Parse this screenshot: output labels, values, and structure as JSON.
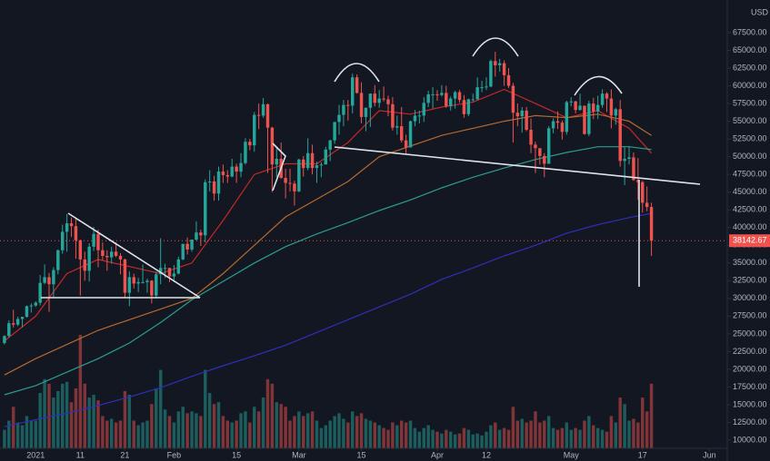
{
  "chart_data": {
    "type": "candlestick",
    "y_label": "USD",
    "x": [
      "Dec 25",
      "Dec 26",
      "Dec 27",
      "Dec 28",
      "Dec 29",
      "Dec 30",
      "Dec 31",
      "Jan 1",
      "Jan 2",
      "Jan 3",
      "Jan 4",
      "Jan 5",
      "Jan 6",
      "Jan 7",
      "Jan 8",
      "Jan 9",
      "Jan 10",
      "Jan 11",
      "Jan 12",
      "Jan 13",
      "Jan 14",
      "Jan 15",
      "Jan 16",
      "Jan 17",
      "Jan 18",
      "Jan 19",
      "Jan 20",
      "Jan 21",
      "Jan 22",
      "Jan 23",
      "Jan 24",
      "Jan 25",
      "Jan 26",
      "Jan 27",
      "Jan 28",
      "Jan 29",
      "Jan 30",
      "Jan 31",
      "Feb 1",
      "Feb 2",
      "Feb 3",
      "Feb 4",
      "Feb 5",
      "Feb 6",
      "Feb 7",
      "Feb 8",
      "Feb 9",
      "Feb 10",
      "Feb 11",
      "Feb 12",
      "Feb 13",
      "Feb 14",
      "Feb 15",
      "Feb 16",
      "Feb 17",
      "Feb 18",
      "Feb 19",
      "Feb 20",
      "Feb 21",
      "Feb 22",
      "Feb 23",
      "Feb 24",
      "Feb 25",
      "Feb 26",
      "Feb 27",
      "Feb 28",
      "Mar 1",
      "Mar 2",
      "Mar 3",
      "Mar 4",
      "Mar 5",
      "Mar 6",
      "Mar 7",
      "Mar 8",
      "Mar 9",
      "Mar 10",
      "Mar 11",
      "Mar 12",
      "Mar 13",
      "Mar 14",
      "Mar 15",
      "Mar 16",
      "Mar 17",
      "Mar 18",
      "Mar 19",
      "Mar 20",
      "Mar 21",
      "Mar 22",
      "Mar 23",
      "Mar 24",
      "Mar 25",
      "Mar 26",
      "Mar 27",
      "Mar 28",
      "Mar 29",
      "Mar 30",
      "Mar 31",
      "Apr 1",
      "Apr 2",
      "Apr 3",
      "Apr 4",
      "Apr 5",
      "Apr 6",
      "Apr 7",
      "Apr 8",
      "Apr 9",
      "Apr 10",
      "Apr 11",
      "Apr 12",
      "Apr 13",
      "Apr 14",
      "Apr 15",
      "Apr 16",
      "Apr 17",
      "Apr 18",
      "Apr 19",
      "Apr 20",
      "Apr 21",
      "Apr 22",
      "Apr 23",
      "Apr 24",
      "Apr 25",
      "Apr 26",
      "Apr 27",
      "Apr 28",
      "Apr 29",
      "Apr 30",
      "May 1",
      "May 2",
      "May 3",
      "May 4",
      "May 5",
      "May 6",
      "May 7",
      "May 8",
      "May 9",
      "May 10",
      "May 11",
      "May 12",
      "May 13",
      "May 14",
      "May 15",
      "May 16",
      "May 17",
      "May 18",
      "May 19"
    ],
    "open": [
      23700,
      24700,
      26500,
      26300,
      27100,
      27400,
      28900,
      29000,
      29400,
      32200,
      33000,
      32000,
      34000,
      36800,
      39400,
      40600,
      40200,
      38200,
      35500,
      33900,
      37300,
      39100,
      36800,
      36000,
      35800,
      36600,
      36000,
      35500,
      30800,
      33000,
      32100,
      32300,
      32300,
      32500,
      30400,
      33400,
      34300,
      34300,
      33100,
      33500,
      35500,
      37700,
      36900,
      38300,
      39300,
      38900,
      46400,
      46500,
      44800,
      47900,
      47400,
      47200,
      48600,
      47900,
      49100,
      52100,
      51600,
      55900,
      55800,
      57400,
      54100,
      48900,
      49700,
      47000,
      46300,
      46200,
      45100,
      49600,
      48400,
      50500,
      48400,
      48800,
      48900,
      51000,
      52300,
      54900,
      55900,
      57300,
      57200,
      61200,
      59000,
      55600,
      56900,
      58900,
      57600,
      58200,
      58100,
      57400,
      54100,
      54300,
      52300,
      51300,
      55000,
      55800,
      55800,
      57600,
      58800,
      58800,
      58700,
      59000,
      57100,
      58200,
      59100,
      58000,
      56000,
      58100,
      58100,
      59800,
      59800,
      59900,
      63500,
      62900,
      63200,
      61500,
      60000,
      56200,
      55700,
      56500,
      53800,
      51700,
      51200,
      50100,
      49000,
      54000,
      55000,
      54800,
      53500,
      57700,
      57800,
      56600,
      57200,
      53200,
      57500,
      56400,
      57300,
      58900,
      58200,
      55800,
      56700,
      49400,
      49700,
      49900,
      46700,
      46400,
      43500,
      42900
    ],
    "high": [
      24800,
      26900,
      28400,
      27400,
      27400,
      29000,
      29300,
      29600,
      33300,
      34800,
      33600,
      34400,
      36900,
      40400,
      41900,
      41400,
      41400,
      38300,
      36600,
      37800,
      40100,
      39700,
      37900,
      36800,
      37300,
      37900,
      36400,
      35600,
      33800,
      33500,
      32900,
      34800,
      32800,
      32600,
      33800,
      38500,
      34900,
      34300,
      34700,
      35900,
      37700,
      38600,
      38300,
      40900,
      39700,
      46800,
      48100,
      47300,
      48600,
      48900,
      48100,
      49700,
      49000,
      50500,
      52600,
      52500,
      56300,
      57500,
      58300,
      57500,
      54200,
      51300,
      52000,
      48300,
      48300,
      46600,
      49700,
      50100,
      52600,
      51700,
      49300,
      49200,
      51400,
      52400,
      54900,
      57300,
      58000,
      58000,
      61700,
      61600,
      60500,
      56900,
      58900,
      60100,
      59400,
      59900,
      58600,
      58400,
      55800,
      57000,
      53100,
      55100,
      56600,
      56500,
      58400,
      59300,
      59800,
      59400,
      60100,
      60000,
      58500,
      59300,
      59400,
      58700,
      58200,
      58900,
      61200,
      60700,
      61200,
      63700,
      64800,
      63800,
      63600,
      62500,
      60400,
      57500,
      57000,
      57000,
      55400,
      52100,
      51200,
      50500,
      54300,
      55400,
      56400,
      55100,
      57900,
      58400,
      57900,
      58900,
      57200,
      57900,
      58300,
      58600,
      59500,
      59100,
      59500,
      56900,
      58000,
      51400,
      51500,
      50600,
      49800,
      46600,
      45800,
      43500
    ],
    "low": [
      23500,
      24500,
      25900,
      26100,
      25900,
      27300,
      28000,
      28800,
      29000,
      32000,
      28100,
      30000,
      33400,
      36300,
      36600,
      38700,
      35600,
      30400,
      32500,
      32400,
      36700,
      34400,
      35400,
      33900,
      34900,
      35800,
      33400,
      30100,
      28900,
      31400,
      30900,
      32100,
      30800,
      29300,
      30000,
      32000,
      32900,
      32300,
      32300,
      33400,
      35400,
      36200,
      36600,
      38200,
      37400,
      37900,
      45100,
      43800,
      43800,
      46300,
      46300,
      47100,
      46300,
      47100,
      48900,
      50900,
      50700,
      53900,
      55500,
      47700,
      45000,
      47100,
      46900,
      44100,
      45100,
      43100,
      45000,
      47200,
      48100,
      47500,
      46300,
      47100,
      48900,
      49400,
      51800,
      53100,
      54300,
      55100,
      56100,
      58900,
      54700,
      53600,
      54200,
      57100,
      56900,
      57800,
      55700,
      53700,
      53100,
      52000,
      50400,
      51300,
      54300,
      54700,
      54900,
      57000,
      56800,
      57900,
      58500,
      56900,
      56500,
      56800,
      57600,
      55500,
      55700,
      57800,
      58000,
      59100,
      59400,
      59800,
      61300,
      62000,
      60000,
      59700,
      52000,
      54300,
      53400,
      53600,
      50500,
      47700,
      48900,
      47100,
      49000,
      53300,
      53900,
      52400,
      53100,
      57100,
      56100,
      56500,
      53100,
      52900,
      55300,
      55300,
      56900,
      56300,
      54000,
      54500,
      48600,
      46000,
      48900,
      46600,
      43900,
      42100,
      42300,
      36000
    ],
    "close": [
      24700,
      26500,
      26300,
      27100,
      27400,
      28900,
      29000,
      29400,
      32200,
      33000,
      32000,
      34000,
      36800,
      39400,
      40600,
      40200,
      38200,
      35500,
      33900,
      37300,
      39100,
      36800,
      36000,
      35800,
      36600,
      36000,
      35500,
      30800,
      33000,
      32100,
      32300,
      32300,
      32500,
      30400,
      33400,
      34300,
      34300,
      33100,
      33500,
      35500,
      37700,
      36900,
      38300,
      39300,
      38900,
      46400,
      46500,
      44800,
      47900,
      47400,
      47200,
      48600,
      47900,
      49100,
      52100,
      51600,
      55900,
      55800,
      57400,
      54100,
      48900,
      49700,
      47000,
      46300,
      46200,
      45100,
      49600,
      48400,
      50500,
      48400,
      48800,
      48900,
      51000,
      52300,
      54900,
      55900,
      57300,
      57200,
      61200,
      59000,
      55600,
      56900,
      58900,
      57600,
      58200,
      58100,
      57400,
      54100,
      54300,
      52300,
      51300,
      55000,
      55800,
      55800,
      57600,
      58800,
      58800,
      58700,
      59000,
      57100,
      58200,
      59100,
      58000,
      56000,
      58100,
      58100,
      59800,
      59800,
      59900,
      63500,
      62900,
      63200,
      61500,
      60000,
      56200,
      55700,
      56500,
      53800,
      51700,
      51200,
      50100,
      49000,
      54000,
      55000,
      54800,
      53500,
      57700,
      57800,
      56600,
      57200,
      53200,
      57500,
      56400,
      57300,
      58900,
      58200,
      55800,
      56700,
      49400,
      49700,
      49900,
      46700,
      46400,
      43500,
      42900,
      38142.67
    ],
    "volume": [
      20,
      30,
      45,
      28,
      25,
      35,
      30,
      30,
      60,
      75,
      70,
      55,
      62,
      70,
      72,
      50,
      65,
      123,
      70,
      55,
      58,
      52,
      35,
      30,
      32,
      28,
      30,
      62,
      58,
      30,
      25,
      28,
      30,
      48,
      65,
      85,
      42,
      35,
      28,
      40,
      45,
      38,
      40,
      38,
      35,
      85,
      60,
      48,
      50,
      35,
      30,
      28,
      30,
      38,
      40,
      28,
      45,
      40,
      55,
      75,
      70,
      50,
      48,
      45,
      30,
      35,
      40,
      35,
      38,
      40,
      30,
      22,
      25,
      30,
      35,
      38,
      32,
      28,
      40,
      35,
      38,
      32,
      30,
      28,
      25,
      22,
      20,
      28,
      25,
      30,
      28,
      30,
      22,
      18,
      22,
      25,
      20,
      18,
      16,
      20,
      18,
      15,
      16,
      22,
      20,
      15,
      16,
      14,
      18,
      25,
      28,
      20,
      22,
      20,
      45,
      30,
      32,
      28,
      30,
      40,
      28,
      30,
      35,
      22,
      20,
      22,
      28,
      20,
      22,
      20,
      30,
      35,
      25,
      22,
      20,
      18,
      35,
      28,
      55,
      48,
      30,
      32,
      28,
      55,
      40,
      70
    ],
    "up_color": "#26a69a",
    "down_color": "#ef5350",
    "moving_averages": [
      {
        "color": "#c62828",
        "x": [
          "Dec 25",
          "Jan 1",
          "Jan 8",
          "Jan 15",
          "Jan 22",
          "Jan 29",
          "Feb 5",
          "Feb 12",
          "Feb 19",
          "Feb 26",
          "Mar 5",
          "Mar 12",
          "Mar 19",
          "Mar 26",
          "Apr 2",
          "Apr 9",
          "Apr 16",
          "Apr 23",
          "Apr 30",
          "May 7",
          "May 14",
          "May 19"
        ],
        "values": [
          24000,
          27500,
          33500,
          35500,
          34500,
          33500,
          35000,
          41000,
          47500,
          49000,
          49000,
          52000,
          56500,
          56000,
          57000,
          57700,
          59500,
          57500,
          55500,
          56500,
          54000,
          50500
        ]
      },
      {
        "color": "#b8692e",
        "x": [
          "Dec 25",
          "Jan 1",
          "Jan 8",
          "Jan 15",
          "Jan 22",
          "Jan 29",
          "Feb 5",
          "Feb 12",
          "Feb 19",
          "Feb 26",
          "Mar 5",
          "Mar 12",
          "Mar 19",
          "Mar 26",
          "Apr 2",
          "Apr 9",
          "Apr 16",
          "Apr 23",
          "Apr 30",
          "May 7",
          "May 14",
          "May 19"
        ],
        "values": [
          19200,
          21500,
          23500,
          25500,
          27000,
          28500,
          30000,
          33500,
          37500,
          41500,
          44000,
          46500,
          50000,
          51500,
          53000,
          54000,
          55000,
          55800,
          55500,
          56000,
          55000,
          53000
        ]
      },
      {
        "color": "#2a9d8f",
        "x": [
          "Dec 25",
          "Jan 1",
          "Jan 8",
          "Jan 15",
          "Jan 22",
          "Jan 29",
          "Feb 5",
          "Feb 12",
          "Feb 19",
          "Feb 26",
          "Mar 5",
          "Mar 12",
          "Mar 19",
          "Mar 26",
          "Apr 2",
          "Apr 9",
          "Apr 16",
          "Apr 23",
          "Apr 30",
          "May 7",
          "May 14",
          "May 19"
        ],
        "values": [
          16400,
          17700,
          19600,
          21500,
          23700,
          26600,
          29800,
          32400,
          35000,
          37300,
          39100,
          40700,
          42400,
          43900,
          45600,
          47100,
          48400,
          49600,
          50600,
          51400,
          51400,
          51000
        ]
      },
      {
        "color": "#2f2fb8",
        "x": [
          "Dec 25",
          "Jan 1",
          "Jan 8",
          "Jan 15",
          "Jan 22",
          "Jan 29",
          "Feb 5",
          "Feb 12",
          "Feb 19",
          "Feb 26",
          "Mar 5",
          "Mar 12",
          "Mar 19",
          "Mar 26",
          "Apr 2",
          "Apr 9",
          "Apr 16",
          "Apr 23",
          "Apr 30",
          "May 7",
          "May 14",
          "May 19"
        ],
        "values": [
          11900,
          12900,
          13800,
          14900,
          16100,
          17400,
          19000,
          20500,
          21900,
          23400,
          25200,
          27000,
          28800,
          30600,
          32700,
          34300,
          36000,
          37500,
          39200,
          40400,
          41400,
          42000
        ]
      }
    ],
    "xlim": [
      "Dec 24",
      "Jun 5"
    ],
    "xticks": [
      {
        "value": "Jan 1",
        "label": "2021"
      },
      {
        "value": "Jan 11",
        "label": "11"
      },
      {
        "value": "Jan 21",
        "label": "21"
      },
      {
        "value": "Feb 1",
        "label": "Feb"
      },
      {
        "value": "Feb 15",
        "label": "15"
      },
      {
        "value": "Mar 1",
        "label": "Mar"
      },
      {
        "value": "Mar 15",
        "label": "15"
      },
      {
        "value": "Apr 1",
        "label": "Apr"
      },
      {
        "value": "Apr 12",
        "label": "12"
      },
      {
        "value": "May 1",
        "label": "May"
      },
      {
        "value": "May 17",
        "label": "17"
      },
      {
        "value": "Jun 1",
        "label": "Jun"
      }
    ],
    "ylim": [
      8850,
      72110
    ],
    "yticks": [
      {
        "value": 10000,
        "label": "10000.00"
      },
      {
        "value": 12500,
        "label": "12500.00"
      },
      {
        "value": 15000,
        "label": "15000.00"
      },
      {
        "value": 17500,
        "label": "17500.00"
      },
      {
        "value": 20000,
        "label": "20000.00"
      },
      {
        "value": 22500,
        "label": "22500.00"
      },
      {
        "value": 25000,
        "label": "25000.00"
      },
      {
        "value": 27500,
        "label": "27500.00"
      },
      {
        "value": 30000,
        "label": "30000.00"
      },
      {
        "value": 32500,
        "label": "32500.00"
      },
      {
        "value": 35000,
        "label": "35000.00"
      },
      {
        "value": 37500,
        "label": "37500.00"
      },
      {
        "value": 40000,
        "label": "40000.00"
      },
      {
        "value": 42500,
        "label": "42500.00"
      },
      {
        "value": 45000,
        "label": "45000.00"
      },
      {
        "value": 47500,
        "label": "47500.00"
      },
      {
        "value": 50000,
        "label": "50000.00"
      },
      {
        "value": 52500,
        "label": "52500.00"
      },
      {
        "value": 55000,
        "label": "55000.00"
      },
      {
        "value": 57500,
        "label": "57500.00"
      },
      {
        "value": 60000,
        "label": "60000.00"
      },
      {
        "value": 62500,
        "label": "62500.00"
      },
      {
        "value": 65000,
        "label": "65000.00"
      },
      {
        "value": 67500,
        "label": "67500.00"
      }
    ],
    "grid": false,
    "last_price": 38142.67
  }
}
